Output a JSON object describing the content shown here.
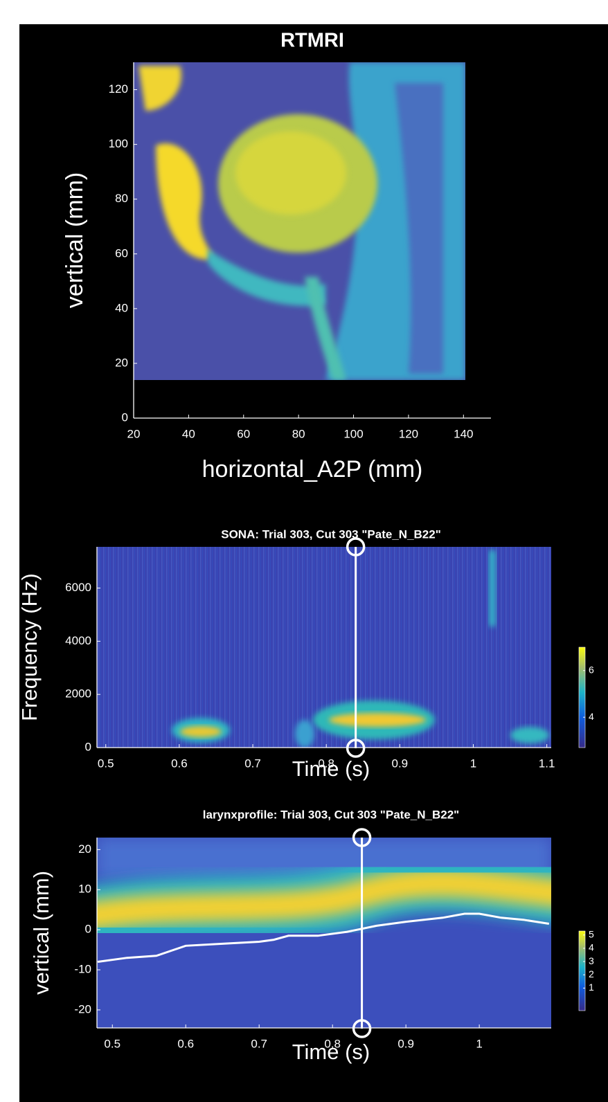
{
  "chart_data": [
    {
      "type": "image",
      "title": "RTMRI",
      "xlabel": "horizontal_A2P (mm)",
      "ylabel": "vertical (mm)",
      "xlim": [
        20,
        150
      ],
      "ylim": [
        0,
        130
      ],
      "xticks": [
        20,
        40,
        60,
        80,
        100,
        120,
        140
      ],
      "yticks": [
        0,
        20,
        40,
        60,
        80,
        100,
        120
      ]
    },
    {
      "type": "spectrogram",
      "title": "SONA: Trial 303, Cut 303 \"Pate_N_B22\"",
      "xlabel": "Time (s)",
      "ylabel": "Frequency (Hz)",
      "xlim": [
        0.488,
        1.106
      ],
      "ylim": [
        0,
        7550
      ],
      "xticks": [
        0.5,
        0.6,
        0.7,
        0.8,
        0.9,
        1,
        1.1
      ],
      "yticks": [
        0,
        2000,
        4000,
        6000
      ],
      "cursor_x": 0.84,
      "clim": [
        2.7,
        7
      ],
      "cticks": [
        4,
        6
      ]
    },
    {
      "type": "line",
      "title": "larynxprofile: Trial 303, Cut 303 \"Pate_N_B22\"",
      "xlabel": "Time (s)",
      "ylabel": "vertical (mm)",
      "xlim": [
        0.479,
        1.098
      ],
      "ylim": [
        -24.5,
        23
      ],
      "xticks": [
        0.5,
        0.6,
        0.7,
        0.8,
        0.9,
        1
      ],
      "yticks": [
        -20,
        -10,
        0,
        10,
        20
      ],
      "cursor_x": 0.84,
      "clim": [
        -0.7,
        5.3
      ],
      "cticks": [
        1,
        2,
        3,
        4,
        5
      ],
      "x": [
        0.48,
        0.52,
        0.56,
        0.6,
        0.65,
        0.7,
        0.72,
        0.74,
        0.78,
        0.82,
        0.86,
        0.9,
        0.95,
        0.98,
        1.0,
        1.03,
        1.06,
        1.095
      ],
      "series": [
        {
          "color": "#ffffff",
          "values": [
            -8,
            -7,
            -6.5,
            -4,
            -3.5,
            -3,
            -2.5,
            -1.5,
            -1.5,
            -0.5,
            1,
            2,
            3,
            4,
            4,
            3,
            2.5,
            1.5
          ]
        }
      ]
    }
  ]
}
